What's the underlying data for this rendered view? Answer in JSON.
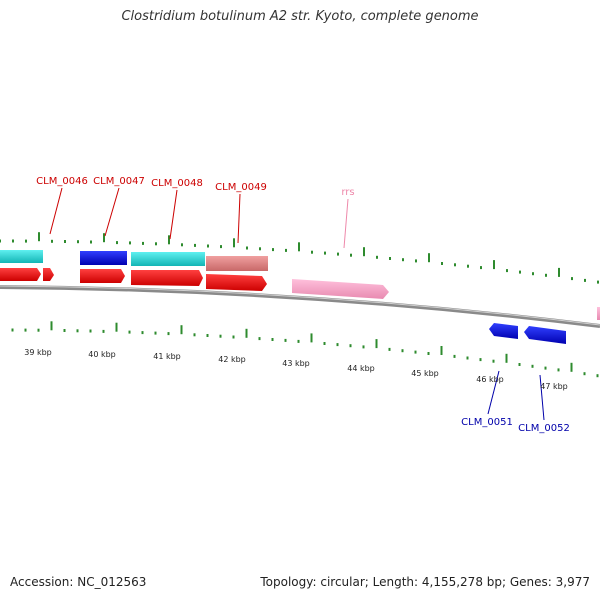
{
  "title": "Clostridium botulinum A2 str. Kyoto, complete genome",
  "footer": {
    "accession": "Accession: NC_012563",
    "summary": "Topology: circular; Length: 4,155,278 bp; Genes: 3,977"
  },
  "colors": {
    "backbone": "#8a8a8a",
    "tick": "#2e8b2e",
    "label_red": "#cc0000",
    "label_blue": "#0000aa",
    "label_pink": "#ee88aa"
  },
  "scale_labels": [
    "39 kbp",
    "40 kbp",
    "41 kbp",
    "42 kbp",
    "43 kbp",
    "44 kbp",
    "45 kbp",
    "46 kbp",
    "47 kbp"
  ],
  "gene_labels": {
    "clm_0046": "CLM_0046",
    "clm_0047": "CLM_0047",
    "clm_0048": "CLM_0048",
    "clm_0049": "CLM_0049",
    "rrs": "rrs",
    "clm_0051": "CLM_0051",
    "clm_0052": "CLM_0052"
  }
}
